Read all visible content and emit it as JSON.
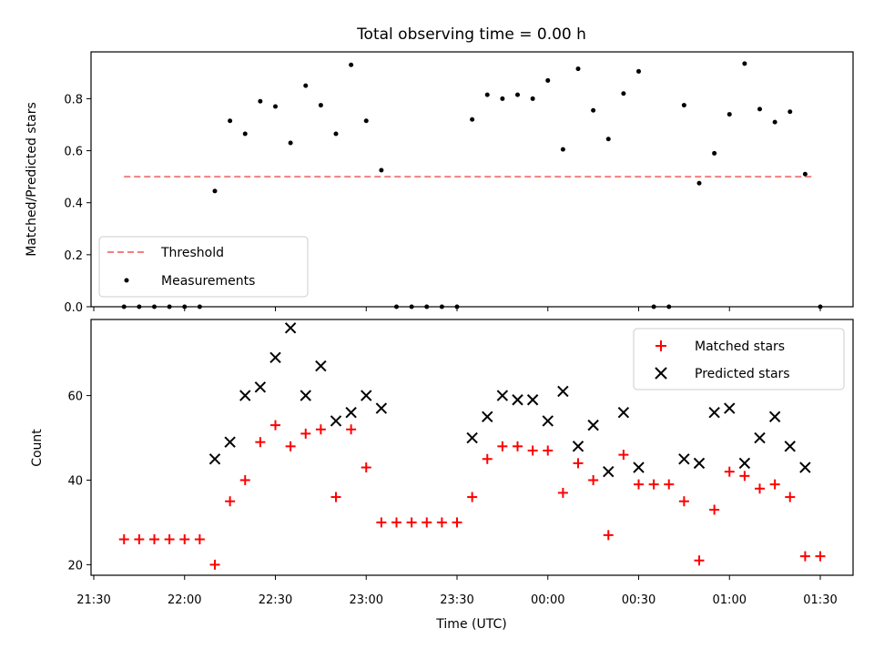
{
  "title": "Total observing time = 0.00 h",
  "chart_data": [
    {
      "panel": "top",
      "type": "scatter",
      "ylabel": "Matched/Predicted stars",
      "ylim": [
        0,
        0.98
      ],
      "yticks": [
        0.0,
        0.2,
        0.4,
        0.6,
        0.8
      ],
      "ytick_labels": [
        "0.0",
        "0.2",
        "0.4",
        "0.6",
        "0.8"
      ],
      "legend_placement": "lower-left",
      "series": [
        {
          "name": "Threshold",
          "style": "dashed-line",
          "color": "#f08080",
          "points": [
            [
              "21:40",
              0.5
            ],
            [
              "01:28",
              0.5
            ]
          ]
        },
        {
          "name": "Measurements",
          "style": "dot",
          "color": "#000000",
          "points": [
            [
              "21:40",
              0.0
            ],
            [
              "21:45",
              0.0
            ],
            [
              "21:50",
              0.0
            ],
            [
              "21:55",
              0.0
            ],
            [
              "22:00",
              0.0
            ],
            [
              "22:05",
              0.0
            ],
            [
              "22:10",
              0.445
            ],
            [
              "22:15",
              0.715
            ],
            [
              "22:20",
              0.665
            ],
            [
              "22:25",
              0.79
            ],
            [
              "22:30",
              0.77
            ],
            [
              "22:35",
              0.63
            ],
            [
              "22:40",
              0.85
            ],
            [
              "22:45",
              0.775
            ],
            [
              "22:50",
              0.665
            ],
            [
              "22:55",
              0.93
            ],
            [
              "23:00",
              0.715
            ],
            [
              "23:05",
              0.525
            ],
            [
              "23:10",
              0.0
            ],
            [
              "23:15",
              0.0
            ],
            [
              "23:20",
              0.0
            ],
            [
              "23:25",
              0.0
            ],
            [
              "23:30",
              0.0
            ],
            [
              "23:35",
              0.72
            ],
            [
              "23:40",
              0.815
            ],
            [
              "23:45",
              0.8
            ],
            [
              "23:50",
              0.815
            ],
            [
              "23:55",
              0.8
            ],
            [
              "00:00",
              0.87
            ],
            [
              "00:05",
              0.605
            ],
            [
              "00:10",
              0.915
            ],
            [
              "00:15",
              0.755
            ],
            [
              "00:20",
              0.645
            ],
            [
              "00:25",
              0.82
            ],
            [
              "00:30",
              0.905
            ],
            [
              "00:35",
              0.0
            ],
            [
              "00:40",
              0.0
            ],
            [
              "00:45",
              0.775
            ],
            [
              "00:50",
              0.475
            ],
            [
              "00:55",
              0.59
            ],
            [
              "01:00",
              0.74
            ],
            [
              "01:05",
              0.935
            ],
            [
              "01:10",
              0.76
            ],
            [
              "01:15",
              0.71
            ],
            [
              "01:20",
              0.75
            ],
            [
              "01:25",
              0.51
            ],
            [
              "01:30",
              0.0
            ]
          ]
        }
      ]
    },
    {
      "panel": "bottom",
      "type": "scatter",
      "xlabel": "Time (UTC)",
      "ylabel": "Count",
      "ylim": [
        17.5,
        78
      ],
      "yticks": [
        20,
        40,
        60
      ],
      "ytick_labels": [
        "20",
        "40",
        "60"
      ],
      "xticks": [
        "21:30",
        "22:00",
        "22:30",
        "23:00",
        "23:30",
        "00:00",
        "00:30",
        "01:00",
        "01:30"
      ],
      "xlim": [
        "21:30",
        "01:35"
      ],
      "legend_placement": "upper-right",
      "series": [
        {
          "name": "Matched stars",
          "marker": "plus",
          "color": "#ff0000",
          "points": [
            [
              "21:40",
              26
            ],
            [
              "21:45",
              26
            ],
            [
              "21:50",
              26
            ],
            [
              "21:55",
              26
            ],
            [
              "22:00",
              26
            ],
            [
              "22:05",
              26
            ],
            [
              "22:10",
              20
            ],
            [
              "22:15",
              35
            ],
            [
              "22:20",
              40
            ],
            [
              "22:25",
              49
            ],
            [
              "22:30",
              53
            ],
            [
              "22:35",
              48
            ],
            [
              "22:40",
              51
            ],
            [
              "22:45",
              52
            ],
            [
              "22:50",
              36
            ],
            [
              "22:55",
              52
            ],
            [
              "23:00",
              43
            ],
            [
              "23:05",
              30
            ],
            [
              "23:10",
              30
            ],
            [
              "23:15",
              30
            ],
            [
              "23:20",
              30
            ],
            [
              "23:25",
              30
            ],
            [
              "23:30",
              30
            ],
            [
              "23:35",
              36
            ],
            [
              "23:40",
              45
            ],
            [
              "23:45",
              48
            ],
            [
              "23:50",
              48
            ],
            [
              "23:55",
              47
            ],
            [
              "00:00",
              47
            ],
            [
              "00:05",
              37
            ],
            [
              "00:10",
              44
            ],
            [
              "00:15",
              40
            ],
            [
              "00:20",
              27
            ],
            [
              "00:25",
              46
            ],
            [
              "00:30",
              39
            ],
            [
              "00:35",
              39
            ],
            [
              "00:40",
              39
            ],
            [
              "00:45",
              35
            ],
            [
              "00:50",
              21
            ],
            [
              "00:55",
              33
            ],
            [
              "01:00",
              42
            ],
            [
              "01:05",
              41
            ],
            [
              "01:10",
              38
            ],
            [
              "01:15",
              39
            ],
            [
              "01:20",
              36
            ],
            [
              "01:25",
              22
            ],
            [
              "01:30",
              22
            ]
          ]
        },
        {
          "name": "Predicted stars",
          "marker": "x",
          "color": "#000000",
          "points": [
            [
              "22:10",
              45
            ],
            [
              "22:15",
              49
            ],
            [
              "22:20",
              60
            ],
            [
              "22:25",
              62
            ],
            [
              "22:30",
              69
            ],
            [
              "22:35",
              76
            ],
            [
              "22:40",
              60
            ],
            [
              "22:45",
              67
            ],
            [
              "22:50",
              54
            ],
            [
              "22:55",
              56
            ],
            [
              "23:00",
              60
            ],
            [
              "23:05",
              57
            ],
            [
              "23:35",
              50
            ],
            [
              "23:40",
              55
            ],
            [
              "23:45",
              60
            ],
            [
              "23:50",
              59
            ],
            [
              "23:55",
              59
            ],
            [
              "00:00",
              54
            ],
            [
              "00:05",
              61
            ],
            [
              "00:10",
              48
            ],
            [
              "00:15",
              53
            ],
            [
              "00:20",
              42
            ],
            [
              "00:25",
              56
            ],
            [
              "00:30",
              43
            ],
            [
              "00:45",
              45
            ],
            [
              "00:50",
              44
            ],
            [
              "00:55",
              56
            ],
            [
              "01:00",
              57
            ],
            [
              "01:05",
              44
            ],
            [
              "01:10",
              50
            ],
            [
              "01:15",
              55
            ],
            [
              "01:20",
              48
            ],
            [
              "01:25",
              43
            ]
          ]
        }
      ]
    }
  ]
}
